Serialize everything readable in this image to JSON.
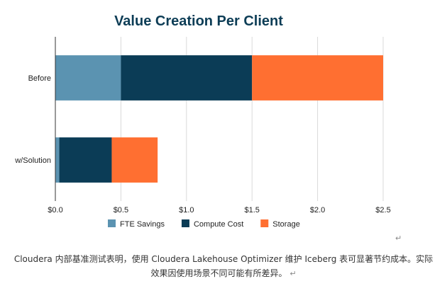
{
  "chart_data": {
    "type": "bar",
    "orientation": "horizontal",
    "stacked": true,
    "title": "Value Creation Per Client",
    "categories": [
      "Before",
      "w/Solution"
    ],
    "series": [
      {
        "name": "FTE Savings",
        "values": [
          0.5,
          0.03
        ],
        "color": "#5b93b1"
      },
      {
        "name": "Compute Cost",
        "values": [
          1.0,
          0.4
        ],
        "color": "#0b3c56"
      },
      {
        "name": "Storage",
        "values": [
          1.0,
          0.35
        ],
        "color": "#ff6f31"
      }
    ],
    "xlim": [
      0,
      2.5
    ],
    "x_ticks": [
      "$0.0",
      "$0.5",
      "$1.0",
      "$1.5",
      "$2.0",
      "$2.5"
    ],
    "grid": true,
    "legend": "bottom"
  },
  "caption": {
    "line1": "Cloudera 内部基准测试表明，使用 Cloudera Lakehouse Optimizer 维护 Iceberg 表可显著节约成本。实际",
    "line2": "效果因使用场景不同可能有所差异。",
    "return_mark": "↵"
  }
}
